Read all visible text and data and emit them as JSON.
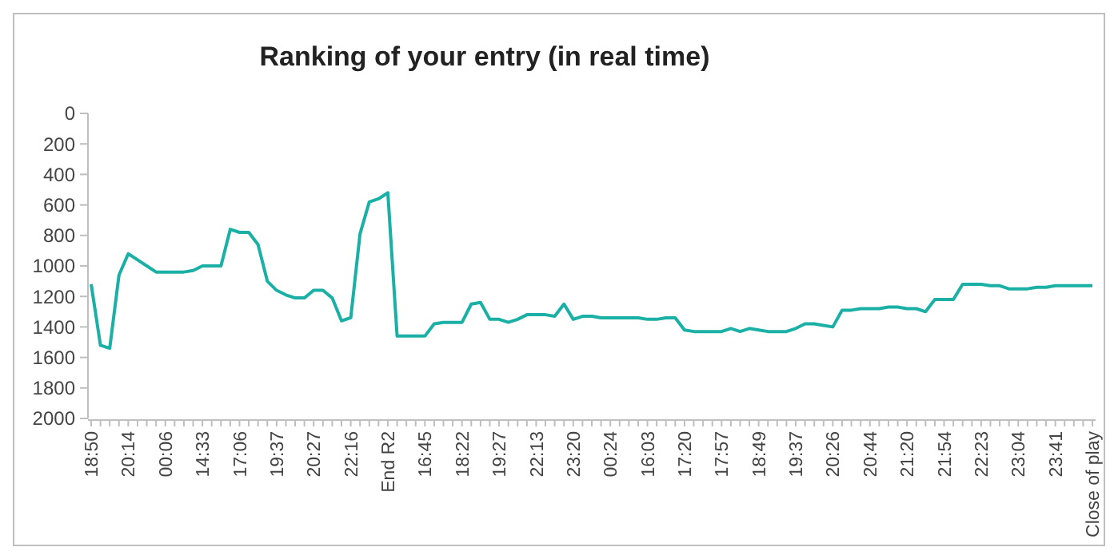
{
  "chart_data": {
    "type": "line",
    "title": "Ranking of your entry (in real time)",
    "categories": [
      "18:50",
      null,
      null,
      null,
      "20:14",
      null,
      null,
      null,
      "00:06",
      null,
      null,
      null,
      "14:33",
      null,
      null,
      null,
      "17:06",
      null,
      null,
      null,
      "19:37",
      null,
      null,
      null,
      "20:27",
      null,
      null,
      null,
      "22:16",
      null,
      null,
      null,
      "End R2",
      null,
      null,
      null,
      "16:45",
      null,
      null,
      null,
      "18:22",
      null,
      null,
      null,
      "19:27",
      null,
      null,
      null,
      "22:13",
      null,
      null,
      null,
      "23:20",
      null,
      null,
      null,
      "00:24",
      null,
      null,
      null,
      "16:03",
      null,
      null,
      null,
      "17:20",
      null,
      null,
      null,
      "17:57",
      null,
      null,
      null,
      "18:49",
      null,
      null,
      null,
      "19:37",
      null,
      null,
      null,
      "20:26",
      null,
      null,
      null,
      "20:44",
      null,
      null,
      null,
      "21:20",
      null,
      null,
      null,
      "21:54",
      null,
      null,
      null,
      "22:23",
      null,
      null,
      null,
      "23:04",
      null,
      null,
      null,
      "23:41",
      null,
      null,
      null,
      "Close of play"
    ],
    "series": [
      {
        "color": "#1bb0a6",
        "values": [
          1120,
          1520,
          1540,
          1060,
          920,
          960,
          1000,
          1040,
          1040,
          1040,
          1040,
          1030,
          1000,
          1000,
          1000,
          760,
          780,
          780,
          860,
          1100,
          1160,
          1190,
          1210,
          1210,
          1160,
          1160,
          1210,
          1360,
          1340,
          790,
          580,
          560,
          520,
          1460,
          1460,
          1460,
          1460,
          1380,
          1370,
          1370,
          1370,
          1250,
          1240,
          1350,
          1350,
          1370,
          1350,
          1320,
          1320,
          1320,
          1330,
          1250,
          1350,
          1330,
          1330,
          1340,
          1340,
          1340,
          1340,
          1340,
          1350,
          1350,
          1340,
          1340,
          1420,
          1430,
          1430,
          1430,
          1430,
          1410,
          1430,
          1410,
          1420,
          1430,
          1430,
          1430,
          1410,
          1380,
          1380,
          1390,
          1400,
          1290,
          1290,
          1280,
          1280,
          1280,
          1270,
          1270,
          1280,
          1280,
          1300,
          1220,
          1220,
          1220,
          1120,
          1120,
          1120,
          1130,
          1130,
          1150,
          1150,
          1150,
          1140,
          1140,
          1130,
          1130,
          1130,
          1130,
          1130
        ]
      }
    ],
    "ylim": [
      2000,
      0
    ],
    "yticks": [
      0,
      200,
      400,
      600,
      800,
      1000,
      1200,
      1400,
      1600,
      1800,
      2000
    ],
    "grid": false,
    "marker": "none",
    "line_style": "solid"
  }
}
